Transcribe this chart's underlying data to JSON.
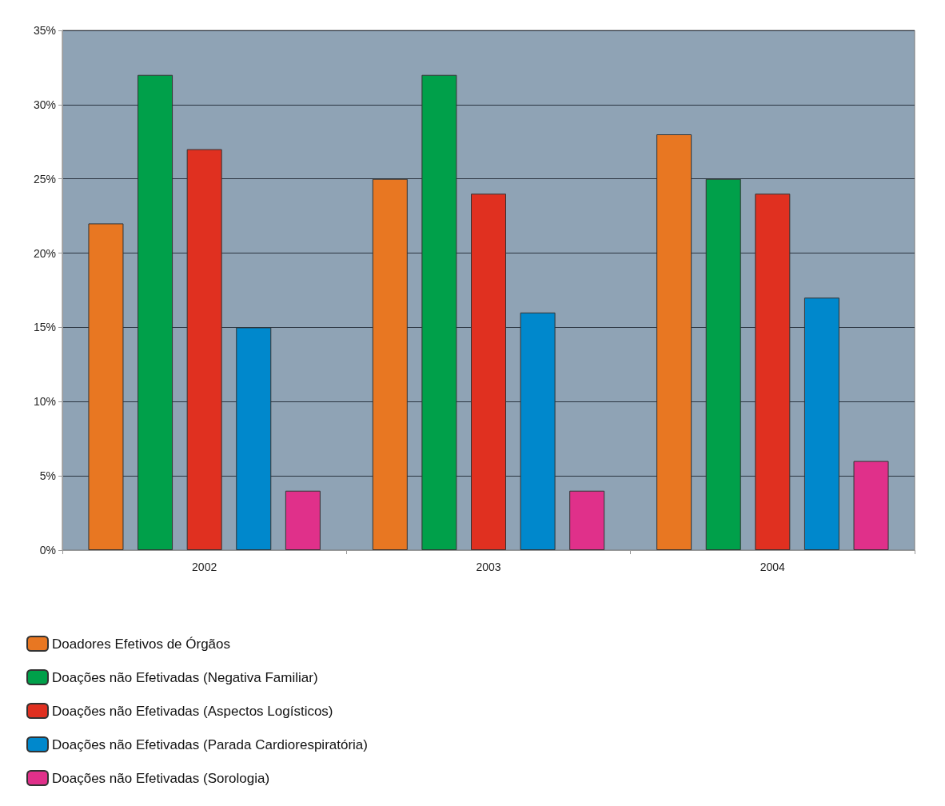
{
  "chart_data": {
    "type": "bar",
    "categories": [
      "2002",
      "2003",
      "2004"
    ],
    "series": [
      {
        "name": "Doadores Efetivos de Órgãos",
        "color": "#e87722",
        "values": [
          22,
          25,
          28
        ]
      },
      {
        "name": "Doações não Efetivadas (Negativa Familiar)",
        "color": "#00a04a",
        "values": [
          32,
          32,
          25
        ]
      },
      {
        "name": "Doações não Efetivadas (Aspectos Logísticos)",
        "color": "#e03020",
        "values": [
          27,
          24,
          24
        ]
      },
      {
        "name": "Doações não Efetivadas (Parada Cardiorespiratória)",
        "color": "#0088cc",
        "values": [
          15,
          16,
          17
        ]
      },
      {
        "name": "Doações não Efetivadas (Sorologia)",
        "color": "#e0308a",
        "values": [
          4,
          4,
          6
        ]
      }
    ],
    "ylim": [
      0,
      35
    ],
    "yticks": [
      {
        "value": 0,
        "label": "0%"
      },
      {
        "value": 5,
        "label": "5%"
      },
      {
        "value": 10,
        "label": "10%"
      },
      {
        "value": 15,
        "label": "15%"
      },
      {
        "value": 20,
        "label": "20%"
      },
      {
        "value": 25,
        "label": "25%"
      },
      {
        "value": 30,
        "label": "30%"
      },
      {
        "value": 35,
        "label": "35%"
      }
    ],
    "grid": "y",
    "legend": "bottom"
  }
}
